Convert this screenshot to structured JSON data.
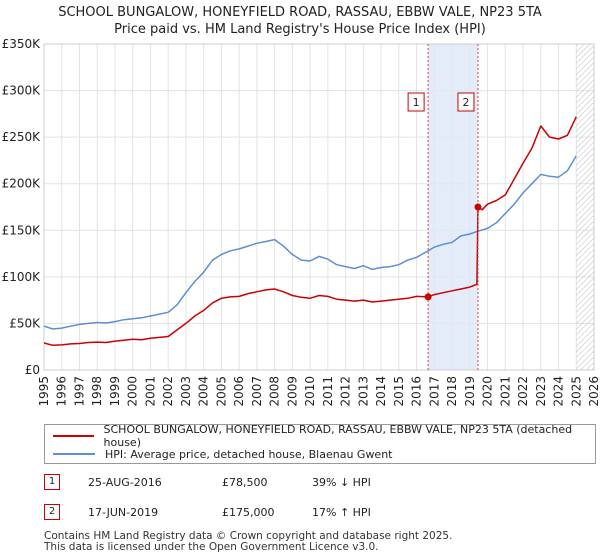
{
  "title_line1": "SCHOOL BUNGALOW, HONEYFIELD ROAD, RASSAU, EBBW VALE, NP23 5TA",
  "title_line2": "Price paid vs. HM Land Registry's House Price Index (HPI)",
  "colors": {
    "property": "#cc0000",
    "hpi": "#5b8fd6",
    "shade": "#dde6f7",
    "grid": "#e3e3e3",
    "marker_line": "#dd4444"
  },
  "legend": {
    "property_label": "SCHOOL BUNGALOW, HONEYFIELD ROAD, RASSAU, EBBW VALE, NP23 5TA (detached house)",
    "hpi_label": "HPI: Average price, detached house, Blaenau Gwent"
  },
  "transactions": [
    {
      "marker": "1",
      "date": "25-AUG-2016",
      "price": "£78,500",
      "hpi": "39% ↓ HPI"
    },
    {
      "marker": "2",
      "date": "17-JUN-2019",
      "price": "£175,000",
      "hpi": "17% ↑ HPI"
    }
  ],
  "footer_line1": "Contains HM Land Registry data © Crown copyright and database right 2025.",
  "footer_line2": "This data is licensed under the Open Government Licence v3.0.",
  "chart_data": {
    "type": "line",
    "xlim": [
      1995,
      2026
    ],
    "ylim": [
      0,
      350000
    ],
    "y_ticks": [
      0,
      50000,
      100000,
      150000,
      200000,
      250000,
      300000,
      350000
    ],
    "y_tick_labels": [
      "£0",
      "£50K",
      "£100K",
      "£150K",
      "£200K",
      "£250K",
      "£300K",
      "£350K"
    ],
    "x_ticks": [
      1995,
      1996,
      1997,
      1998,
      1999,
      2000,
      2001,
      2002,
      2003,
      2004,
      2005,
      2006,
      2007,
      2008,
      2009,
      2010,
      2011,
      2012,
      2013,
      2014,
      2015,
      2016,
      2017,
      2018,
      2019,
      2020,
      2021,
      2022,
      2023,
      2024,
      2025,
      2026
    ],
    "x_tick_labels": [
      "1995",
      "1996",
      "1997",
      "1998",
      "1999",
      "2000",
      "2001",
      "2002",
      "2003",
      "2004",
      "2005",
      "2006",
      "2007",
      "2008",
      "2009",
      "2010",
      "2011",
      "2012",
      "2013",
      "2014",
      "2015",
      "2016",
      "2017",
      "2018",
      "2019",
      "2020",
      "2021",
      "2022",
      "2023",
      "2024",
      "2025",
      "2026"
    ],
    "shaded_region": [
      2016.65,
      2019.46
    ],
    "hatch_from": 2025.0,
    "sales": [
      {
        "label": "1",
        "x": 2016.65,
        "y": 78500
      },
      {
        "label": "2",
        "x": 2019.46,
        "y": 175000
      }
    ],
    "series": [
      {
        "name": "SCHOOL BUNGALOW, HONEYFIELD ROAD, RASSAU, EBBW VALE, NP23 5TA (detached house)",
        "color": "#cc0000",
        "x": [
          1995.0,
          1995.5,
          1996.0,
          1996.5,
          1997.0,
          1997.5,
          1998.0,
          1998.5,
          1999.0,
          1999.5,
          2000.0,
          2000.5,
          2001.0,
          2001.5,
          2002.0,
          2002.5,
          2003.0,
          2003.5,
          2004.0,
          2004.5,
          2005.0,
          2005.5,
          2006.0,
          2006.5,
          2007.0,
          2007.5,
          2008.0,
          2008.5,
          2009.0,
          2009.5,
          2010.0,
          2010.5,
          2011.0,
          2011.5,
          2012.0,
          2012.5,
          2013.0,
          2013.5,
          2014.0,
          2014.5,
          2015.0,
          2015.5,
          2016.0,
          2016.65,
          2017.0,
          2017.5,
          2018.0,
          2018.5,
          2019.0,
          2019.4,
          2019.46,
          2019.7,
          2020.0,
          2020.5,
          2021.0,
          2021.5,
          2022.0,
          2022.5,
          2023.0,
          2023.5,
          2024.0,
          2024.5,
          2025.0
        ],
        "y": [
          29000,
          26500,
          27000,
          28000,
          28500,
          29500,
          30000,
          29500,
          31000,
          32000,
          33000,
          32500,
          34000,
          35000,
          36000,
          43000,
          50000,
          58000,
          64000,
          72000,
          77000,
          78500,
          79000,
          82000,
          84000,
          86000,
          87000,
          84000,
          80000,
          78000,
          77000,
          80000,
          79000,
          76000,
          75000,
          74000,
          75000,
          73000,
          74000,
          75000,
          76000,
          77000,
          79000,
          78500,
          81000,
          83000,
          85000,
          87000,
          89000,
          92000,
          175000,
          172000,
          178000,
          182000,
          188000,
          205000,
          222000,
          238000,
          262000,
          250000,
          248000,
          252000,
          272000
        ]
      },
      {
        "name": "HPI: Average price, detached house, Blaenau Gwent",
        "color": "#5b8fd6",
        "x": [
          1995.0,
          1995.5,
          1996.0,
          1996.5,
          1997.0,
          1997.5,
          1998.0,
          1998.5,
          1999.0,
          1999.5,
          2000.0,
          2000.5,
          2001.0,
          2001.5,
          2002.0,
          2002.5,
          2003.0,
          2003.5,
          2004.0,
          2004.5,
          2005.0,
          2005.5,
          2006.0,
          2006.5,
          2007.0,
          2007.5,
          2008.0,
          2008.5,
          2009.0,
          2009.5,
          2010.0,
          2010.5,
          2011.0,
          2011.5,
          2012.0,
          2012.5,
          2013.0,
          2013.5,
          2014.0,
          2014.5,
          2015.0,
          2015.5,
          2016.0,
          2016.65,
          2017.0,
          2017.5,
          2018.0,
          2018.5,
          2019.0,
          2019.46,
          2020.0,
          2020.5,
          2021.0,
          2021.5,
          2022.0,
          2022.5,
          2023.0,
          2023.5,
          2024.0,
          2024.5,
          2025.0
        ],
        "y": [
          47000,
          44000,
          45000,
          47000,
          49000,
          50000,
          51000,
          50500,
          52000,
          54000,
          55000,
          56000,
          58000,
          60000,
          62000,
          70000,
          83000,
          95000,
          105000,
          118000,
          124000,
          128000,
          130000,
          133000,
          136000,
          138000,
          140000,
          133000,
          124000,
          118000,
          117000,
          122000,
          119000,
          113000,
          111000,
          109000,
          112000,
          108000,
          110000,
          111000,
          113000,
          118000,
          121000,
          128000,
          132000,
          135000,
          137000,
          144000,
          146000,
          149000,
          152000,
          158000,
          168000,
          178000,
          190000,
          200000,
          210000,
          208000,
          207000,
          214000,
          230000
        ]
      }
    ]
  }
}
